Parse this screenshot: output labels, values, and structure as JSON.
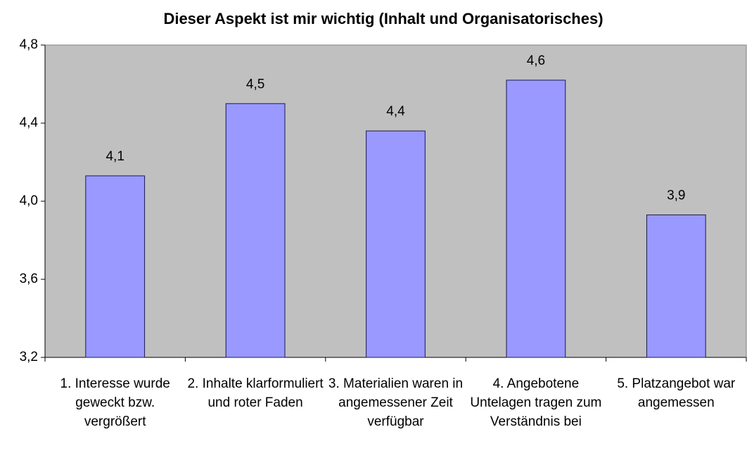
{
  "chart_data": {
    "type": "bar",
    "title": "Dieser Aspekt ist mir wichtig (Inhalt und Organisatorisches)",
    "categories": [
      "1. Interesse wurde geweckt bzw. vergrößert",
      "2. Inhalte klarformuliert und roter Faden",
      "3. Materialien waren in angemessener Zeit verfügbar",
      "4. Angebotene Untelagen tragen zum Verständnis bei",
      "5. Platzangebot war angemessen"
    ],
    "values": [
      4.13,
      4.5,
      4.36,
      4.62,
      3.93
    ],
    "value_labels": [
      "4,1",
      "4,5",
      "4,4",
      "4,6",
      "3,9"
    ],
    "color": "#9999ff",
    "ylim": [
      3.2,
      4.8
    ],
    "yticks": [
      {
        "value": 3.2,
        "label": "3,2"
      },
      {
        "value": 3.6,
        "label": "3,6"
      },
      {
        "value": 4.0,
        "label": "4,0"
      },
      {
        "value": 4.4,
        "label": "4,4"
      },
      {
        "value": 4.8,
        "label": "4,8"
      }
    ],
    "grid": false
  }
}
